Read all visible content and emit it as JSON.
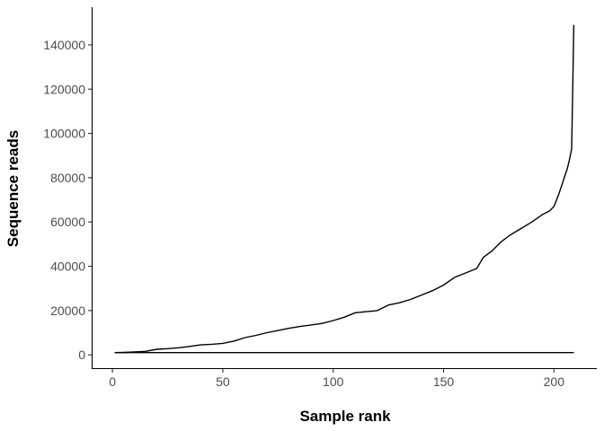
{
  "chart_data": {
    "type": "line",
    "xlabel": "Sample rank",
    "ylabel": "Sequence reads",
    "xlim": [
      -9,
      219
    ],
    "ylim": [
      -6000,
      157000
    ],
    "x_ticks": [
      0,
      50,
      100,
      150,
      200
    ],
    "y_ticks": [
      0,
      20000,
      40000,
      60000,
      80000,
      100000,
      120000,
      140000
    ],
    "grid": false,
    "legend": "none",
    "colors": {
      "line": "#000000",
      "axis": "#000000",
      "tick_label": "#4d4d4d"
    },
    "series": [
      {
        "style": "curve",
        "x": [
          1,
          5,
          10,
          15,
          20,
          25,
          30,
          35,
          40,
          45,
          50,
          55,
          60,
          65,
          70,
          75,
          80,
          85,
          90,
          95,
          100,
          105,
          110,
          115,
          120,
          125,
          130,
          135,
          140,
          145,
          150,
          155,
          160,
          165,
          168,
          172,
          176,
          180,
          185,
          190,
          195,
          198,
          200,
          202,
          204,
          205,
          206,
          207,
          208,
          208.5,
          209
        ],
        "y": [
          1000,
          1100,
          1300,
          1600,
          2500,
          2800,
          3200,
          3800,
          4500,
          4800,
          5200,
          6200,
          7800,
          8800,
          10000,
          11000,
          12000,
          12800,
          13500,
          14200,
          15500,
          17000,
          19000,
          19500,
          20000,
          22500,
          23500,
          25000,
          27000,
          29000,
          31500,
          35000,
          37000,
          39000,
          44000,
          47000,
          51000,
          54000,
          57000,
          60000,
          63500,
          65000,
          67000,
          72000,
          78000,
          81000,
          84000,
          88000,
          93000,
          120000,
          149000
        ]
      },
      {
        "style": "flat",
        "x": [
          1,
          209
        ],
        "y": [
          1000,
          1000
        ]
      }
    ]
  }
}
